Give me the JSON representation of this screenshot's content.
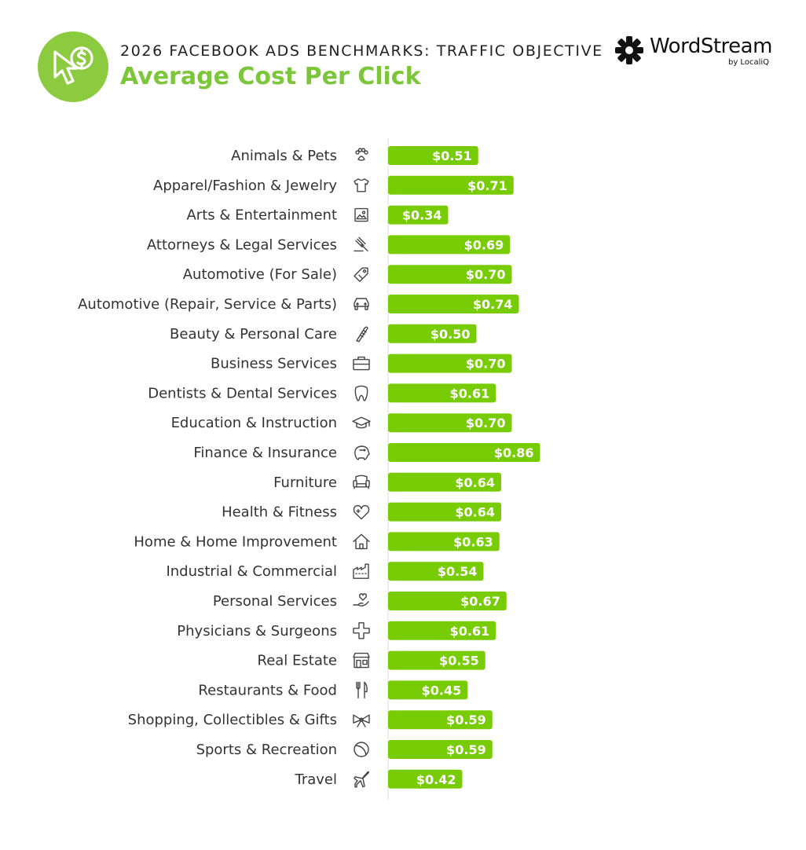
{
  "header": {
    "subtitle": "2026 FACEBOOK ADS BENCHMARKS: TRAFFIC OBJECTIVE",
    "title": "Average Cost Per Click",
    "badge_icon": "cursor-dollar-icon"
  },
  "logo": {
    "name": "WordStream",
    "by": "by LocaliQ"
  },
  "colors": {
    "accent": "#7cc63a",
    "bar": "#78cc06",
    "badge": "#8ccb3f",
    "text": "#333333",
    "axis": "#dddddd"
  },
  "chart_data": {
    "type": "bar",
    "orientation": "horizontal",
    "title": "Average Cost Per Click",
    "xlabel": "",
    "ylabel": "",
    "xlim": [
      0,
      1.0
    ],
    "grid": false,
    "legend": "none",
    "categories": [
      "Animals & Pets",
      "Apparel/Fashion & Jewelry",
      "Arts & Entertainment",
      "Attorneys & Legal Services",
      "Automotive (For Sale)",
      "Automotive (Repair, Service & Parts)",
      "Beauty & Personal Care",
      "Business Services",
      "Dentists & Dental Services",
      "Education & Instruction",
      "Finance & Insurance",
      "Furniture",
      "Health & Fitness",
      "Home & Home Improvement",
      "Industrial & Commercial",
      "Personal Services",
      "Physicians & Surgeons",
      "Real Estate",
      "Restaurants & Food",
      "Shopping, Collectibles & Gifts",
      "Sports & Recreation",
      "Travel"
    ],
    "values": [
      0.51,
      0.71,
      0.34,
      0.69,
      0.7,
      0.74,
      0.5,
      0.7,
      0.61,
      0.7,
      0.86,
      0.64,
      0.64,
      0.63,
      0.54,
      0.67,
      0.61,
      0.55,
      0.45,
      0.59,
      0.59,
      0.42
    ],
    "value_labels": [
      "$0.51",
      "$0.71",
      "$0.34",
      "$0.69",
      "$0.70",
      "$0.74",
      "$0.50",
      "$0.70",
      "$0.61",
      "$0.70",
      "$0.86",
      "$0.64",
      "$0.64",
      "$0.63",
      "$0.54",
      "$0.67",
      "$0.61",
      "$0.55",
      "$0.45",
      "$0.59",
      "$0.59",
      "$0.42"
    ],
    "icons": [
      "paw-icon",
      "tshirt-icon",
      "picture-icon",
      "gavel-icon",
      "price-tag-icon",
      "car-icon",
      "comb-icon",
      "briefcase-icon",
      "tooth-icon",
      "graduation-cap-icon",
      "piggy-bank-icon",
      "armchair-icon",
      "heart-plus-icon",
      "house-icon",
      "factory-icon",
      "hand-heart-icon",
      "medical-cross-icon",
      "storefront-icon",
      "fork-knife-icon",
      "gift-bow-icon",
      "ball-icon",
      "airplane-icon"
    ]
  }
}
